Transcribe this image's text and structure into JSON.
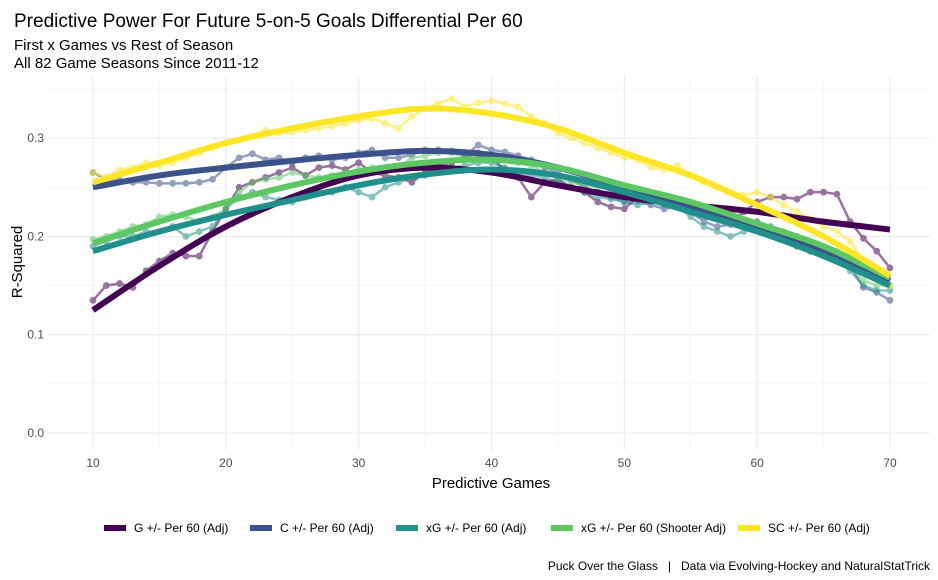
{
  "chart_data": {
    "type": "line",
    "title": "Predictive Power For Future 5-on-5 Goals Differential Per 60",
    "subtitle": [
      "First x Games vs Rest of Season",
      "All 82 Game Seasons Since 2011-12"
    ],
    "xlabel": "Predictive Games",
    "ylabel": "R-Squared",
    "xlim": [
      10,
      70
    ],
    "ylim": [
      0,
      0.35
    ],
    "xticks": [
      10,
      20,
      30,
      40,
      50,
      60,
      70
    ],
    "xtick_labels": [
      "10",
      "20",
      "30",
      "40",
      "50",
      "60",
      "70"
    ],
    "yticks": [
      0.0,
      0.1,
      0.2,
      0.3
    ],
    "ytick_labels": [
      "0.0",
      "0.1",
      "0.2",
      "0.3"
    ],
    "grid": true,
    "legend_position": "bottom",
    "caption": "Puck Over the Glass   |   Data via Evolving-Hockey and NaturalStatTrick",
    "smooth_x": [
      10,
      15,
      20,
      25,
      30,
      35,
      40,
      45,
      50,
      55,
      60,
      65,
      70
    ],
    "series": [
      {
        "name": "G +/- Per 60 (Adj)",
        "color": "#440154",
        "smooth": [
          0.125,
          0.17,
          0.21,
          0.24,
          0.262,
          0.27,
          0.265,
          0.252,
          0.24,
          0.232,
          0.225,
          0.215,
          0.207
        ],
        "raw": [
          0.135,
          0.15,
          0.152,
          0.148,
          0.165,
          0.175,
          0.183,
          0.18,
          0.18,
          0.205,
          0.228,
          0.25,
          0.255,
          0.26,
          0.265,
          0.27,
          0.262,
          0.27,
          0.272,
          0.268,
          0.275,
          0.265,
          0.262,
          0.26,
          0.255,
          0.265,
          0.272,
          0.275,
          0.28,
          0.285,
          0.28,
          0.268,
          0.26,
          0.24,
          0.255,
          0.258,
          0.25,
          0.245,
          0.235,
          0.23,
          0.228,
          0.24,
          0.242,
          0.238,
          0.232,
          0.228,
          0.225,
          0.22,
          0.215,
          0.225,
          0.235,
          0.24,
          0.24,
          0.238,
          0.245,
          0.245,
          0.243,
          0.215,
          0.198,
          0.185,
          0.168
        ]
      },
      {
        "name": "C +/- Per 60 (Adj)",
        "color": "#3B528B",
        "smooth": [
          0.25,
          0.262,
          0.27,
          0.277,
          0.283,
          0.287,
          0.283,
          0.27,
          0.25,
          0.23,
          0.21,
          0.185,
          0.155
        ],
        "raw": [
          0.265,
          0.258,
          0.257,
          0.255,
          0.255,
          0.254,
          0.254,
          0.254,
          0.255,
          0.258,
          0.27,
          0.28,
          0.284,
          0.278,
          0.28,
          0.275,
          0.28,
          0.282,
          0.278,
          0.28,
          0.285,
          0.288,
          0.28,
          0.28,
          0.283,
          0.288,
          0.288,
          0.287,
          0.282,
          0.293,
          0.288,
          0.286,
          0.282,
          0.278,
          0.27,
          0.265,
          0.258,
          0.25,
          0.245,
          0.24,
          0.235,
          0.236,
          0.232,
          0.228,
          0.23,
          0.225,
          0.215,
          0.21,
          0.212,
          0.215,
          0.215,
          0.21,
          0.2,
          0.19,
          0.185,
          0.183,
          0.178,
          0.17,
          0.148,
          0.143,
          0.135
        ]
      },
      {
        "name": "xG +/- Per 60 (Adj)",
        "color": "#21908C",
        "smooth": [
          0.185,
          0.205,
          0.222,
          0.237,
          0.252,
          0.263,
          0.268,
          0.262,
          0.245,
          0.225,
          0.205,
          0.18,
          0.15
        ],
        "raw": [
          0.19,
          0.195,
          0.2,
          0.2,
          0.205,
          0.205,
          0.21,
          0.2,
          0.205,
          0.21,
          0.228,
          0.24,
          0.245,
          0.24,
          0.237,
          0.235,
          0.24,
          0.245,
          0.245,
          0.25,
          0.245,
          0.24,
          0.25,
          0.255,
          0.26,
          0.262,
          0.27,
          0.27,
          0.272,
          0.275,
          0.275,
          0.27,
          0.265,
          0.262,
          0.26,
          0.255,
          0.25,
          0.245,
          0.24,
          0.238,
          0.235,
          0.232,
          0.235,
          0.232,
          0.23,
          0.22,
          0.21,
          0.205,
          0.2,
          0.205,
          0.21,
          0.205,
          0.198,
          0.19,
          0.185,
          0.18,
          0.175,
          0.165,
          0.15,
          0.145,
          0.145
        ]
      },
      {
        "name": "xG +/- Per 60 (Shooter Adj)",
        "color": "#5DC863",
        "smooth": [
          0.193,
          0.215,
          0.235,
          0.252,
          0.266,
          0.275,
          0.278,
          0.27,
          0.252,
          0.235,
          0.213,
          0.19,
          0.158
        ],
        "raw": [
          0.197,
          0.2,
          0.205,
          0.21,
          0.212,
          0.22,
          0.222,
          0.22,
          0.215,
          0.22,
          0.228,
          0.245,
          0.255,
          0.258,
          0.26,
          0.265,
          0.262,
          0.26,
          0.262,
          0.265,
          0.268,
          0.27,
          0.265,
          0.27,
          0.28,
          0.282,
          0.285,
          0.285,
          0.28,
          0.282,
          0.28,
          0.278,
          0.275,
          0.272,
          0.265,
          0.26,
          0.255,
          0.252,
          0.25,
          0.248,
          0.25,
          0.245,
          0.24,
          0.235,
          0.23,
          0.225,
          0.222,
          0.22,
          0.218,
          0.215,
          0.212,
          0.208,
          0.205,
          0.2,
          0.195,
          0.19,
          0.185,
          0.17,
          0.155,
          0.15,
          0.15
        ]
      },
      {
        "name": "SC +/- Per 60 (Adj)",
        "color": "#FDE725",
        "smooth": [
          0.255,
          0.275,
          0.295,
          0.31,
          0.322,
          0.33,
          0.325,
          0.31,
          0.285,
          0.262,
          0.232,
          0.2,
          0.16
        ],
        "raw": [
          0.265,
          0.26,
          0.268,
          0.27,
          0.275,
          0.272,
          0.275,
          0.28,
          0.285,
          0.29,
          0.295,
          0.298,
          0.302,
          0.308,
          0.305,
          0.306,
          0.308,
          0.31,
          0.312,
          0.315,
          0.318,
          0.32,
          0.315,
          0.31,
          0.322,
          0.33,
          0.335,
          0.34,
          0.332,
          0.336,
          0.338,
          0.335,
          0.332,
          0.322,
          0.315,
          0.305,
          0.3,
          0.295,
          0.29,
          0.285,
          0.28,
          0.278,
          0.27,
          0.268,
          0.272,
          0.262,
          0.255,
          0.25,
          0.245,
          0.242,
          0.245,
          0.24,
          0.232,
          0.225,
          0.218,
          0.21,
          0.205,
          0.195,
          0.175,
          0.16,
          0.15
        ]
      }
    ]
  }
}
